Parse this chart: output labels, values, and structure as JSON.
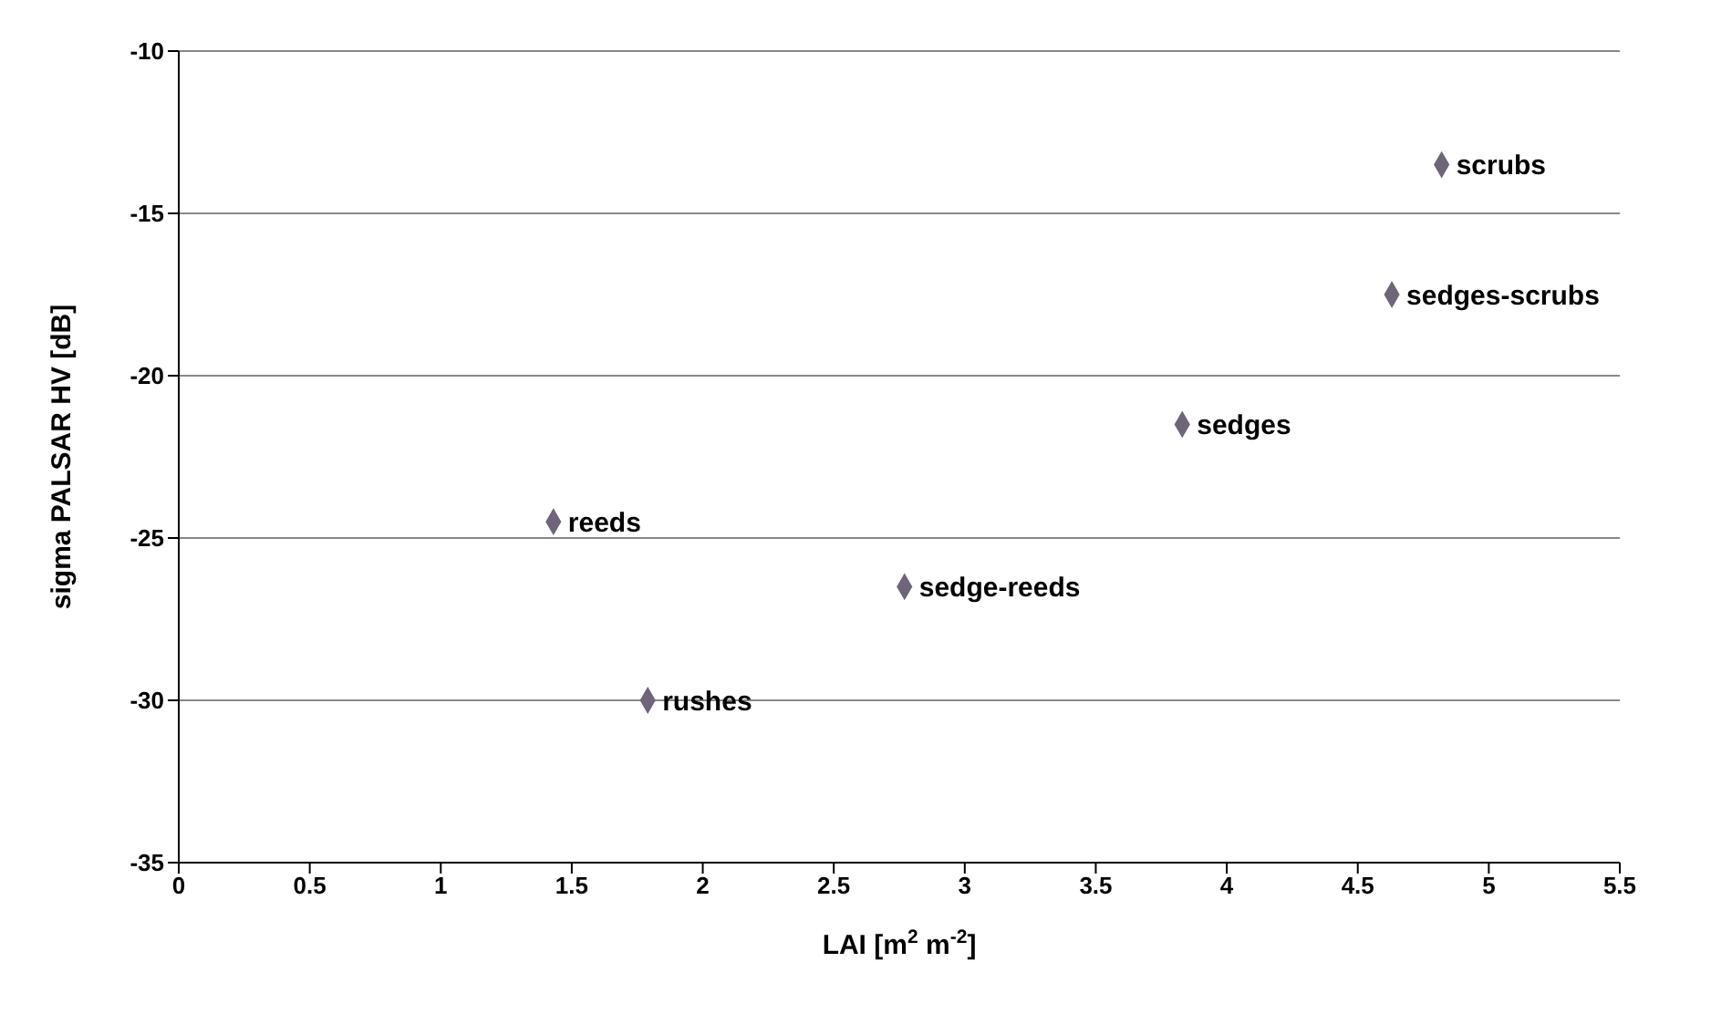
{
  "chart_data": {
    "type": "scatter",
    "xlabel": "LAI [m$^{2}$ m$^{-2}$]",
    "ylabel": "sigma PALSAR HV [dB]",
    "x": [
      1.43,
      1.79,
      2.77,
      3.83,
      4.63,
      4.82
    ],
    "series": [
      {
        "color": "#6e6578",
        "values": [
          -24.5,
          -30,
          -26.5,
          -21.5,
          -17.5,
          -13.5
        ]
      }
    ],
    "xlim": [
      0,
      5.5
    ],
    "xticks": [
      0,
      0.5,
      1,
      1.5,
      2,
      2.5,
      3,
      3.5,
      4,
      4.5,
      5,
      5.5
    ],
    "ylim": [
      -35,
      -10
    ],
    "yticks": [
      -35,
      -30,
      -25,
      -20,
      -15,
      -10
    ],
    "grid": "y",
    "marker": "diamond",
    "legend": false,
    "annotations": [
      {
        "text": "reeds",
        "x": 1.43,
        "y": -24.5
      },
      {
        "text": "rushes",
        "x": 1.79,
        "y": -30
      },
      {
        "text": "sedge-reeds",
        "x": 2.77,
        "y": -26.5
      },
      {
        "text": "sedges",
        "x": 3.83,
        "y": -21.5
      },
      {
        "text": "sedges-scrubs",
        "x": 4.63,
        "y": -17.5
      },
      {
        "text": "scrubs",
        "x": 4.82,
        "y": -13.5
      }
    ]
  }
}
